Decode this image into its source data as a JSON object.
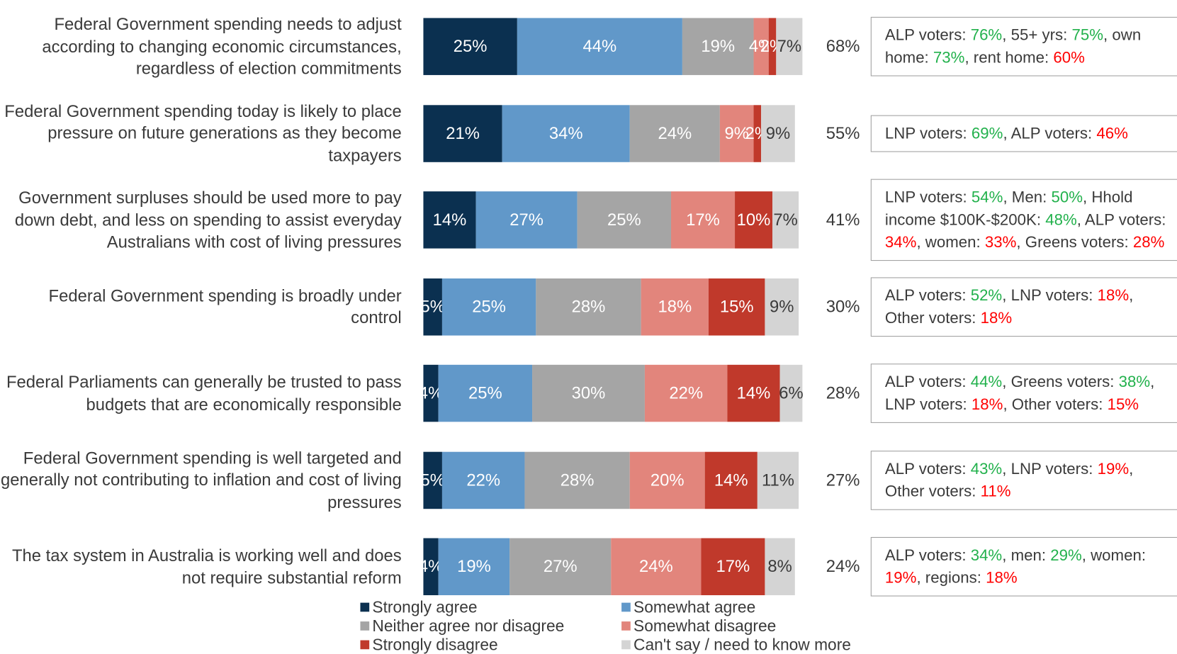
{
  "chart_data": {
    "type": "stacked_bar_horizontal",
    "xlim": [
      0,
      100
    ],
    "categories": [
      "Federal Government spending needs to adjust according to changing economic circumstances, regardless of election commitments",
      "Federal Government spending today is likely to place pressure on future generations as they become taxpayers",
      "Government surpluses should be used more to pay down debt, and less on spending to assist everyday Australians with cost of living pressures",
      "Federal Government spending is broadly under control",
      "Federal Parliaments can generally be trusted to pass budgets that are economically responsible",
      "Federal Government spending is well targeted and generally not contributing to inflation and cost of living pressures",
      "The tax system in Australia is working well and does not require substantial reform"
    ],
    "series": [
      {
        "name": "Strongly agree",
        "color": "#0b3050",
        "values": [
          25,
          21,
          14,
          5,
          4,
          5,
          4
        ],
        "value_labels": [
          "25%",
          "21%",
          "14%",
          "5%",
          "4%",
          "5%",
          "4%"
        ]
      },
      {
        "name": "Somewhat agree",
        "color": "#6198c9",
        "values": [
          44,
          34,
          27,
          25,
          25,
          22,
          19
        ],
        "value_labels": [
          "44%",
          "34%",
          "27%",
          "25%",
          "25%",
          "22%",
          "19%"
        ]
      },
      {
        "name": "Neither agree nor disagree",
        "color": "#a5a5a5",
        "values": [
          19,
          24,
          25,
          28,
          30,
          28,
          27
        ],
        "value_labels": [
          "19%",
          "24%",
          "25%",
          "28%",
          "30%",
          "28%",
          "27%"
        ]
      },
      {
        "name": "Somewhat disagree",
        "color": "#e2857c",
        "values": [
          4,
          9,
          17,
          18,
          22,
          20,
          24
        ],
        "value_labels": [
          "4%",
          "9%",
          "17%",
          "18%",
          "22%",
          "20%",
          "24%"
        ]
      },
      {
        "name": "Strongly disagree",
        "color": "#c0392b",
        "values": [
          2,
          2,
          10,
          15,
          14,
          14,
          17
        ],
        "value_labels": [
          "2%",
          "2%",
          "10%",
          "15%",
          "14%",
          "14%",
          "17%"
        ]
      },
      {
        "name": "Can't say / need to know more",
        "color": "#d4d4d4",
        "values": [
          7,
          9,
          7,
          9,
          6,
          11,
          8
        ],
        "value_labels": [
          "7%",
          "9%",
          "7%",
          "9%",
          "6%",
          "11%",
          "8%"
        ]
      }
    ],
    "totals": {
      "values": [
        68,
        55,
        41,
        30,
        28,
        27,
        24
      ],
      "value_labels": [
        "68%",
        "55%",
        "41%",
        "30%",
        "28%",
        "27%",
        "24%"
      ]
    },
    "notes": [
      [
        {
          "text": "ALP voters: "
        },
        {
          "text": "76%",
          "color": "#22b14c"
        },
        {
          "text": ", 55+ yrs: "
        },
        {
          "text": "75%",
          "color": "#22b14c"
        },
        {
          "text": ", own home: "
        },
        {
          "text": "73%",
          "color": "#22b14c"
        },
        {
          "text": ", rent home: "
        },
        {
          "text": "60%",
          "color": "#ff0000"
        }
      ],
      [
        {
          "text": "LNP voters: "
        },
        {
          "text": "69%",
          "color": "#22b14c"
        },
        {
          "text": ", ALP voters: "
        },
        {
          "text": "46%",
          "color": "#ff0000"
        }
      ],
      [
        {
          "text": "LNP voters: "
        },
        {
          "text": "54%",
          "color": "#22b14c"
        },
        {
          "text": ", Men: "
        },
        {
          "text": "50%",
          "color": "#22b14c"
        },
        {
          "text": ", Hhold income $100K-$200K: "
        },
        {
          "text": "48%",
          "color": "#22b14c"
        },
        {
          "text": ", ALP voters: "
        },
        {
          "text": "34%",
          "color": "#ff0000"
        },
        {
          "text": ", women: "
        },
        {
          "text": "33%",
          "color": "#ff0000"
        },
        {
          "text": ", Greens voters: "
        },
        {
          "text": "28%",
          "color": "#ff0000"
        }
      ],
      [
        {
          "text": "ALP voters: "
        },
        {
          "text": "52%",
          "color": "#22b14c"
        },
        {
          "text": ", LNP voters: "
        },
        {
          "text": "18%",
          "color": "#ff0000"
        },
        {
          "text": ", Other voters: "
        },
        {
          "text": "18%",
          "color": "#ff0000"
        }
      ],
      [
        {
          "text": "ALP voters: "
        },
        {
          "text": "44%",
          "color": "#22b14c"
        },
        {
          "text": ", Greens voters: "
        },
        {
          "text": "38%",
          "color": "#22b14c"
        },
        {
          "text": ", LNP voters: "
        },
        {
          "text": "18%",
          "color": "#ff0000"
        },
        {
          "text": ", Other voters: "
        },
        {
          "text": "15%",
          "color": "#ff0000"
        }
      ],
      [
        {
          "text": "ALP voters: "
        },
        {
          "text": "43%",
          "color": "#22b14c"
        },
        {
          "text": ", LNP voters: "
        },
        {
          "text": "19%",
          "color": "#ff0000"
        },
        {
          "text": ", Other voters: "
        },
        {
          "text": "11%",
          "color": "#ff0000"
        }
      ],
      [
        {
          "text": "ALP voters: "
        },
        {
          "text": "34%",
          "color": "#22b14c"
        },
        {
          "text": ", men: "
        },
        {
          "text": "29%",
          "color": "#22b14c"
        },
        {
          "text": ", women: "
        },
        {
          "text": "19%",
          "color": "#ff0000"
        },
        {
          "text": ", regions: "
        },
        {
          "text": "18%",
          "color": "#ff0000"
        }
      ]
    ]
  }
}
